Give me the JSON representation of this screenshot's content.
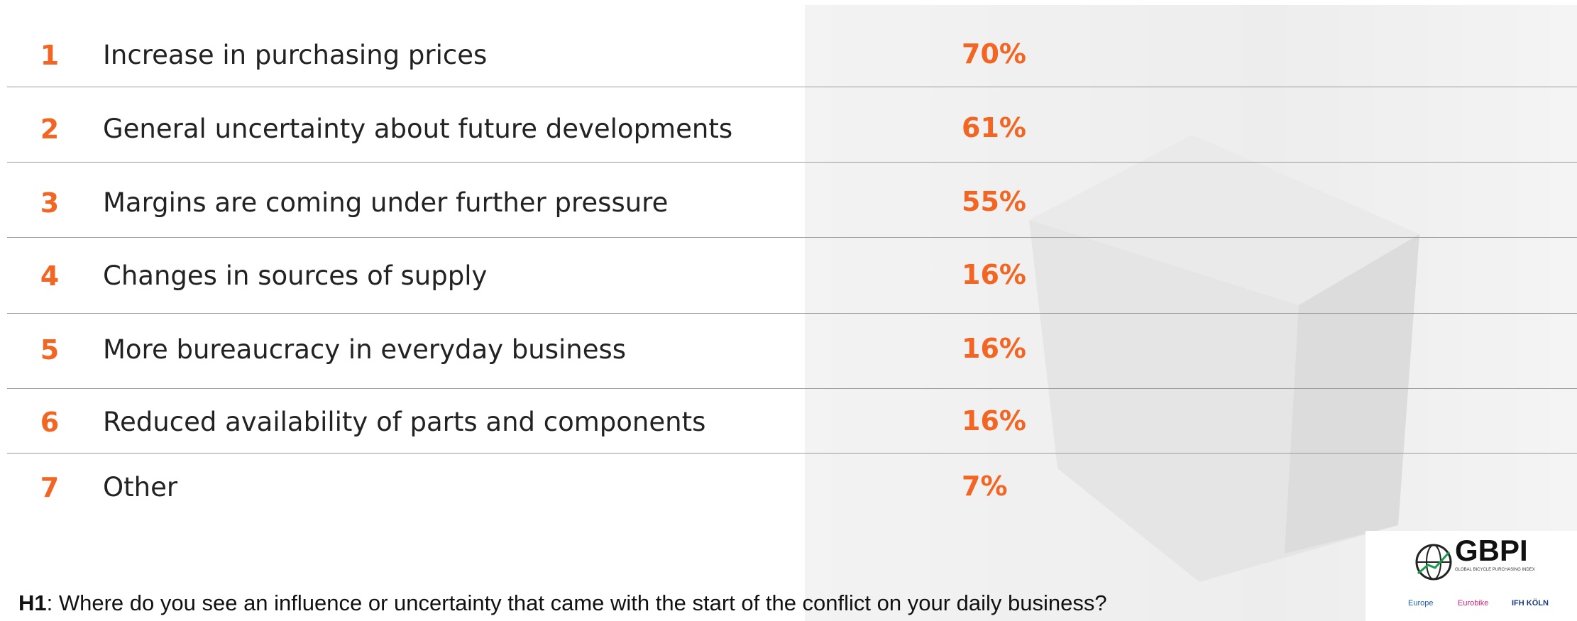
{
  "rows": [
    {
      "rank": "1",
      "label": "Increase in purchasing prices",
      "value": "70%"
    },
    {
      "rank": "2",
      "label": "General uncertainty about future developments",
      "value": "61%"
    },
    {
      "rank": "3",
      "label": "Margins are coming under further pressure",
      "value": "55%"
    },
    {
      "rank": "4",
      "label": "Changes in sources of supply",
      "value": "16%"
    },
    {
      "rank": "5",
      "label": "More bureaucracy in everyday business",
      "value": "16%"
    },
    {
      "rank": "6",
      "label": "Reduced availability of parts and components",
      "value": "16%"
    },
    {
      "rank": "7",
      "label": "Other",
      "value": "7%"
    }
  ],
  "footer": {
    "code": "H1",
    "question": ": Where do you see an influence or uncertainty that came with the start of the conflict on your daily business?"
  },
  "logo": {
    "name": "GBPI",
    "tagline": "GLOBAL BICYCLE PURCHASING INDEX",
    "partners": [
      "Europe",
      "Eurobike",
      "IFH KÖLN"
    ]
  }
}
